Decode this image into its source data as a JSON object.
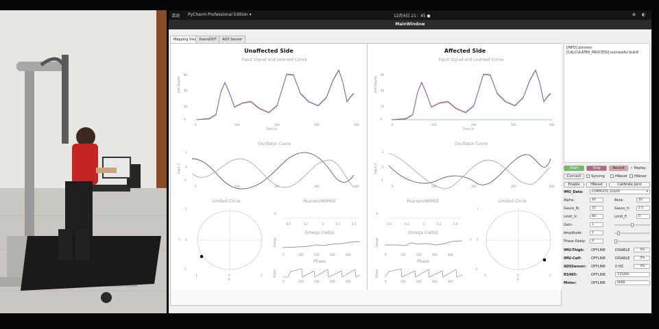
{
  "topbar": {
    "activities": "活动",
    "app": "PyCharm Professional Edition ▾",
    "clock": "12月4日 21：45 ●",
    "tray1": "⊕",
    "tray2": "◐"
  },
  "window": {
    "title": "MainWindow"
  },
  "tabs": [
    {
      "label": "Mapping View",
      "active": true
    },
    {
      "label": "XsensDOT",
      "active": false
    },
    {
      "label": "ADS Sensor",
      "active": false
    }
  ],
  "unaffected": {
    "title": "Unaffected Side",
    "input_plot": {
      "title": "Input Signal and Learned Curve",
      "xlabel": "Time (s)",
      "ylabel": "Joint Degree",
      "yticks": [
        "60",
        "40",
        "20",
        "0"
      ],
      "xticks": [
        "0",
        "100",
        "200",
        "300",
        "400"
      ]
    },
    "osc_plot": {
      "title": "Oscillator Cuvre",
      "ylabel": "Input_X",
      "yticks": [
        "1",
        "0",
        "-1"
      ],
      "xticks": [
        "0",
        "100",
        "200",
        "300",
        "400"
      ]
    },
    "limit_plot": {
      "title": "Limited Circle",
      "xlabel": "X",
      "ylabel": "Y",
      "yticks": [
        "1",
        "0",
        "-1"
      ],
      "xticks": [
        "-1",
        "0",
        "1"
      ]
    },
    "pearson_plot": {
      "title": "Pearson/NRMSE",
      "ylabel": "R",
      "xticks": [
        "-0.4",
        "-0.2",
        "0",
        "0.2",
        "0.4"
      ]
    },
    "omega_plot": {
      "title": "Omega (rad/s)",
      "ylabel": "Omega",
      "xticks": [
        "0",
        "100",
        "200",
        "300",
        "400"
      ]
    },
    "phase_plot": {
      "title": "Phase",
      "ylabel": "Phase",
      "xticks": [
        "0",
        "100",
        "200",
        "300",
        "400"
      ]
    }
  },
  "affected": {
    "title": "Affected Side",
    "input_plot": {
      "title": "Input Signal and Learned Curve",
      "xlabel": "Time (s)",
      "ylabel": "Joint Degree",
      "yticks": [
        "60",
        "40",
        "20",
        "0"
      ],
      "xticks": [
        "0",
        "100",
        "200",
        "300",
        "400"
      ]
    },
    "osc_plot": {
      "title": "Oscillator Cuvre",
      "ylabel": "Input_X",
      "yticks": [
        "1",
        "0",
        "-1"
      ],
      "xticks": [
        "0",
        "100",
        "200",
        "300",
        "400"
      ]
    },
    "pearson_plot": {
      "title": "Pearson/NRMSE",
      "ylabel": "R",
      "xticks": [
        "-0.4",
        "-0.2",
        "0",
        "0.2",
        "0.4"
      ]
    },
    "omega_plot": {
      "title": "Omega (rad/s)",
      "ylabel": "Omega",
      "xticks": [
        "0",
        "100",
        "200",
        "300",
        "400"
      ]
    },
    "phase_plot": {
      "title": "Phase",
      "ylabel": "Phase",
      "xticks": [
        "0",
        "100",
        "200",
        "300",
        "400"
      ]
    },
    "limit_plot": {
      "title": "Limited Circle",
      "xlabel": "X",
      "ylabel": "Y",
      "yticks": [
        "1",
        "0",
        "-1"
      ],
      "xticks": [
        "-1",
        "0",
        "1"
      ]
    }
  },
  "log": {
    "text": "[INFO] process:[CALCULATER_PROCESS]:successful build!"
  },
  "controls": {
    "start": "Start",
    "stop": "Stop",
    "record": "Record",
    "replay": "Replay",
    "connect": "Connect",
    "syncing": "Syncing",
    "hreset": "HReset",
    "hreverse": "HRever",
    "enable": "Enable",
    "hreset_btn": "HReset",
    "calibrate": "Calibrate Joint",
    "imu_data_label": "IMU_Data:",
    "imu_data_value": "COMPLETE_EULER",
    "alpha_label": "Alpha:",
    "alpha_value": "40",
    "beta_label": "Beta:",
    "beta_value": "10",
    "gauss_n_label": "Gauss_N:",
    "gauss_n_value": "15",
    "gauss_h_label": "Gauss_h:",
    "gauss_h_value": "2.5",
    "limit_u_label": "Limit_U:",
    "limit_u_value": "80",
    "limit_f_label": "Limit_F:",
    "limit_f_value": "0",
    "gain_label": "Gain:",
    "gain_value": "1",
    "amplitude_label": "Amplitude:",
    "amplitude_value": "1",
    "phase_delay_label": "Phase Dealy:",
    "phase_delay_value": "0"
  },
  "status": [
    {
      "label": "IMU-Thigh:",
      "state": "OFFLINE",
      "mode": "DISABLE",
      "pct": "0%"
    },
    {
      "label": "IMU-Calf:",
      "state": "OFFLINE",
      "mode": "DISABLE",
      "pct": "0%"
    },
    {
      "label": "ADSSensor:",
      "state": "OFFLINE",
      "mode": "0 HZ",
      "pct": "0%"
    },
    {
      "label": "RS485:",
      "state": "OFFLINE",
      "mode": "115200"
    },
    {
      "label": "Motor:",
      "state": "OFFLINE",
      "mode": "0000"
    }
  ],
  "colors": {
    "start_green": "#6fbf5a",
    "stop_red": "#b0697c",
    "record_red": "#d9a6a6",
    "signal_blue": "#6b6fb4",
    "learned_red": "#c87a7a"
  }
}
